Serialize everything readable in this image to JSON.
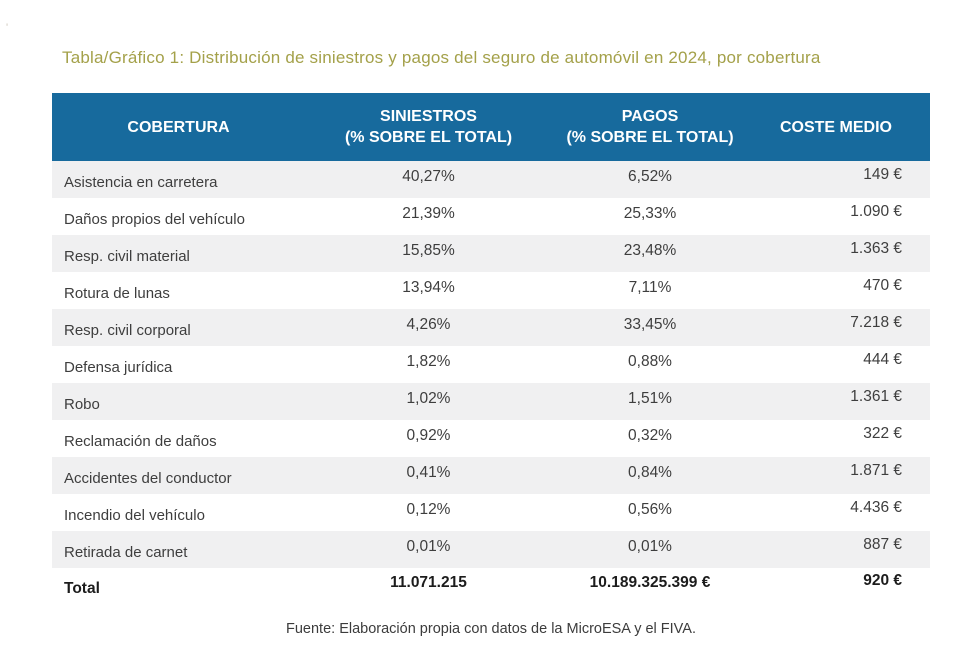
{
  "stray_mark": "'",
  "chart_data": {
    "type": "table",
    "title": "Tabla/Gráfico 1: Distribución de siniestros y pagos del seguro de automóvil en 2024, por cobertura",
    "columns": {
      "cobertura": "COBERTURA",
      "siniestros": [
        "SINIESTROS",
        "(% SOBRE EL TOTAL)"
      ],
      "pagos": [
        "PAGOS",
        "(% SOBRE EL TOTAL)"
      ],
      "coste_medio": "COSTE MEDIO"
    },
    "rows": [
      {
        "label": "Asistencia en carretera",
        "siniestros_pct": "40,27%",
        "pagos_pct": "6,52%",
        "coste_medio": "149 €"
      },
      {
        "label": "Daños propios del vehículo",
        "siniestros_pct": "21,39%",
        "pagos_pct": "25,33%",
        "coste_medio": "1.090 €"
      },
      {
        "label": "Resp. civil material",
        "siniestros_pct": "15,85%",
        "pagos_pct": "23,48%",
        "coste_medio": "1.363 €"
      },
      {
        "label": "Rotura de lunas",
        "siniestros_pct": "13,94%",
        "pagos_pct": "7,11%",
        "coste_medio": "470 €"
      },
      {
        "label": "Resp. civil corporal",
        "siniestros_pct": "4,26%",
        "pagos_pct": "33,45%",
        "coste_medio": "7.218 €"
      },
      {
        "label": "Defensa jurídica",
        "siniestros_pct": "1,82%",
        "pagos_pct": "0,88%",
        "coste_medio": "444 €"
      },
      {
        "label": "Robo",
        "siniestros_pct": "1,02%",
        "pagos_pct": "1,51%",
        "coste_medio": "1.361 €"
      },
      {
        "label": "Reclamación de daños",
        "siniestros_pct": "0,92%",
        "pagos_pct": "0,32%",
        "coste_medio": "322 €"
      },
      {
        "label": "Accidentes del conductor",
        "siniestros_pct": "0,41%",
        "pagos_pct": "0,84%",
        "coste_medio": "1.871 €"
      },
      {
        "label": "Incendio del vehículo",
        "siniestros_pct": "0,12%",
        "pagos_pct": "0,56%",
        "coste_medio": "4.436 €"
      },
      {
        "label": "Retirada de carnet",
        "siniestros_pct": "0,01%",
        "pagos_pct": "0,01%",
        "coste_medio": "887 €"
      }
    ],
    "total": {
      "label": "Total",
      "siniestros": "11.071.215",
      "pagos": "10.189.325.399 €",
      "coste_medio": "920 €"
    },
    "source": "Fuente: Elaboración propia con datos de la MicroESA y el FIVA.",
    "layout": {
      "striped_rows": "odd",
      "value_alignment": {
        "cobertura": "left",
        "siniestros": "center",
        "pagos": "center",
        "coste_medio": "right"
      }
    },
    "colors": {
      "header_bg": "#176a9d",
      "header_text": "#ffffff",
      "stripe_bg": "#f0f0f1",
      "title_text": "#a4a14a",
      "body_text": "#3e3e3e"
    }
  }
}
